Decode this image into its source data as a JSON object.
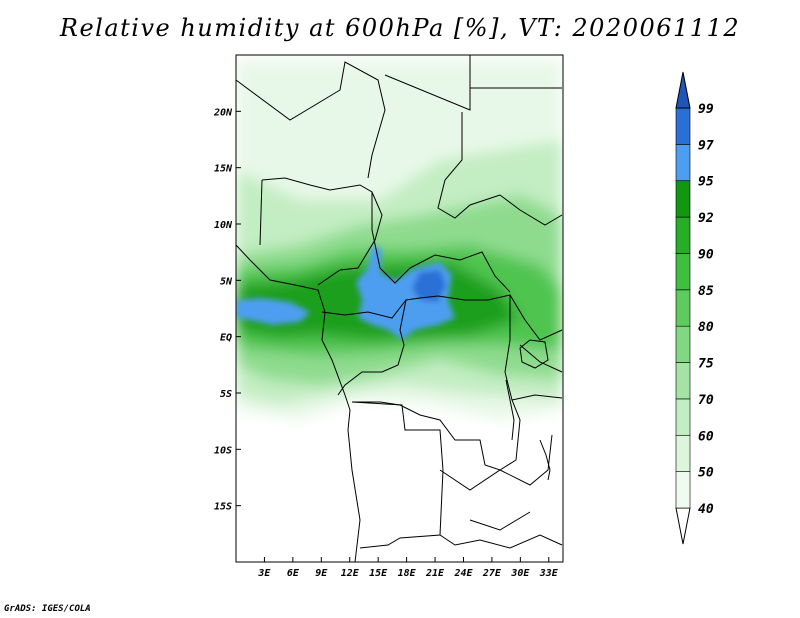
{
  "title": "Relative humidity at 600hPa [%], VT: 2020061112",
  "credit": "GrADS: IGES/COLA",
  "map": {
    "lon_range": [
      0,
      34.5
    ],
    "lat_range": [
      -20,
      25
    ],
    "x_ticks": [
      {
        "lon": 3,
        "label": "3E"
      },
      {
        "lon": 6,
        "label": "6E"
      },
      {
        "lon": 9,
        "label": "9E"
      },
      {
        "lon": 12,
        "label": "12E"
      },
      {
        "lon": 15,
        "label": "15E"
      },
      {
        "lon": 18,
        "label": "18E"
      },
      {
        "lon": 21,
        "label": "21E"
      },
      {
        "lon": 24,
        "label": "24E"
      },
      {
        "lon": 27,
        "label": "27E"
      },
      {
        "lon": 30,
        "label": "30E"
      },
      {
        "lon": 33,
        "label": "33E"
      }
    ],
    "y_ticks": [
      {
        "lat": 20,
        "label": "20N"
      },
      {
        "lat": 15,
        "label": "15N"
      },
      {
        "lat": 10,
        "label": "10N"
      },
      {
        "lat": 5,
        "label": "5N"
      },
      {
        "lat": 0,
        "label": "EQ"
      },
      {
        "lat": -5,
        "label": "5S"
      },
      {
        "lat": -10,
        "label": "10S"
      },
      {
        "lat": -15,
        "label": "15S"
      }
    ]
  },
  "colorbar": {
    "levels": [
      {
        "label": "40",
        "color": "#f0fbf0"
      },
      {
        "label": "50",
        "color": "#dcf5dc"
      },
      {
        "label": "60",
        "color": "#c3edc3"
      },
      {
        "label": "70",
        "color": "#a5e3a5"
      },
      {
        "label": "75",
        "color": "#82d782"
      },
      {
        "label": "80",
        "color": "#5ecb5e"
      },
      {
        "label": "85",
        "color": "#3fbe3f"
      },
      {
        "label": "90",
        "color": "#27ad27"
      },
      {
        "label": "92",
        "color": "#139713"
      },
      {
        "label": "95",
        "color": "#4d9ef0"
      },
      {
        "label": "97",
        "color": "#2a6fd6"
      },
      {
        "label": "99",
        "color": "#1f55b8"
      }
    ]
  }
}
